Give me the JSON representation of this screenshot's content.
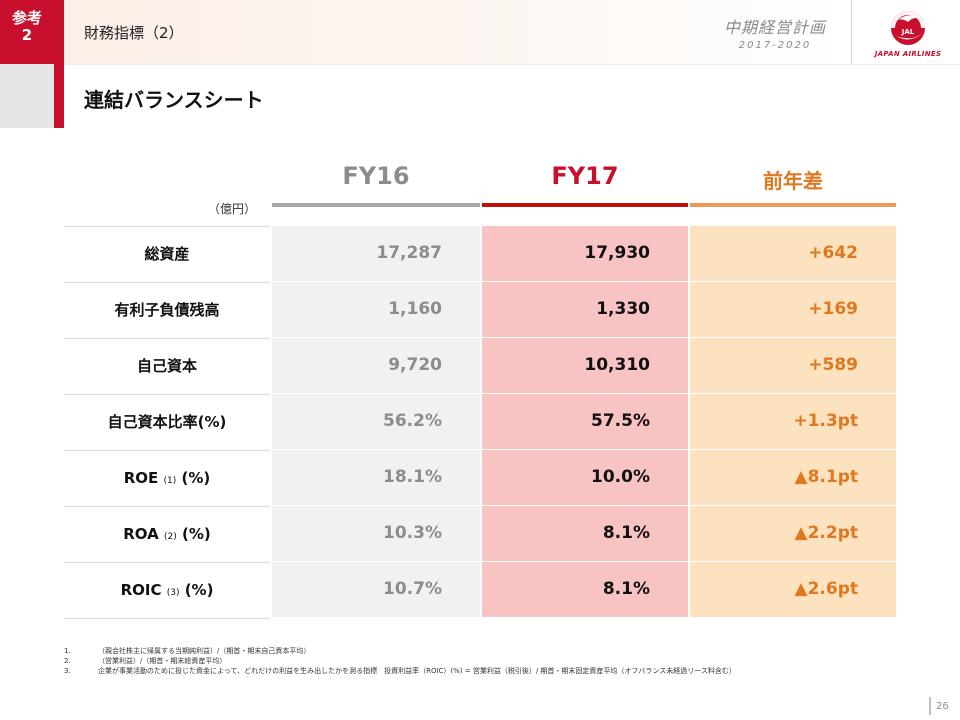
{
  "header": {
    "ref_line1": "参考",
    "ref_line2": "2",
    "title": "財務指標（2）",
    "plan_title": "中期経営計画",
    "plan_years": "2017-2020",
    "logo_text": "JAPAN AIRLINES",
    "logo_mark": "JAL"
  },
  "section_title": "連結バランスシート",
  "table": {
    "unit": "（億円）",
    "columns": {
      "fy16": "FY16",
      "fy17": "FY17",
      "diff": "前年差"
    },
    "rows": [
      {
        "label": "総資産",
        "fy16": "17,287",
        "fy17": "17,930",
        "diff": "+642"
      },
      {
        "label": "有利子負債残高",
        "fy16": "1,160",
        "fy17": "1,330",
        "diff": "+169"
      },
      {
        "label": "自己資本",
        "fy16": "9,720",
        "fy17": "10,310",
        "diff": "+589"
      },
      {
        "label": "自己資本比率(%)",
        "fy16": "56.2%",
        "fy17": "57.5%",
        "diff": "+1.3pt"
      },
      {
        "label_main": "ROE",
        "label_note": "(1)",
        "label_unit": "(%)",
        "fy16": "18.1%",
        "fy17": "10.0%",
        "diff": "▲8.1pt"
      },
      {
        "label_main": "ROA",
        "label_note": "(2)",
        "label_unit": "(%)",
        "fy16": "10.3%",
        "fy17": "8.1%",
        "diff": "▲2.2pt"
      },
      {
        "label_main": "ROIC",
        "label_note": "(3)",
        "label_unit": "(%)",
        "fy16": "10.7%",
        "fy17": "8.1%",
        "diff": "▲2.6pt"
      }
    ]
  },
  "footnotes": [
    {
      "num": "1.",
      "text": "（親会社株主に帰属する当期純利益）/（期首・期末自己資本平均）"
    },
    {
      "num": "2.",
      "text": "（営業利益）/（期首・期末総資産平均）"
    },
    {
      "num": "3.",
      "text": "企業が事業活動のために投じた資金によって、どれだけの利益を生み出したかを測る指標　投資利益率（ROIC）(%) = 営業利益（税引後）/ 期首・期末固定資産平均（オフバランス未経過リース料含む）"
    }
  ],
  "page_number": "26"
}
